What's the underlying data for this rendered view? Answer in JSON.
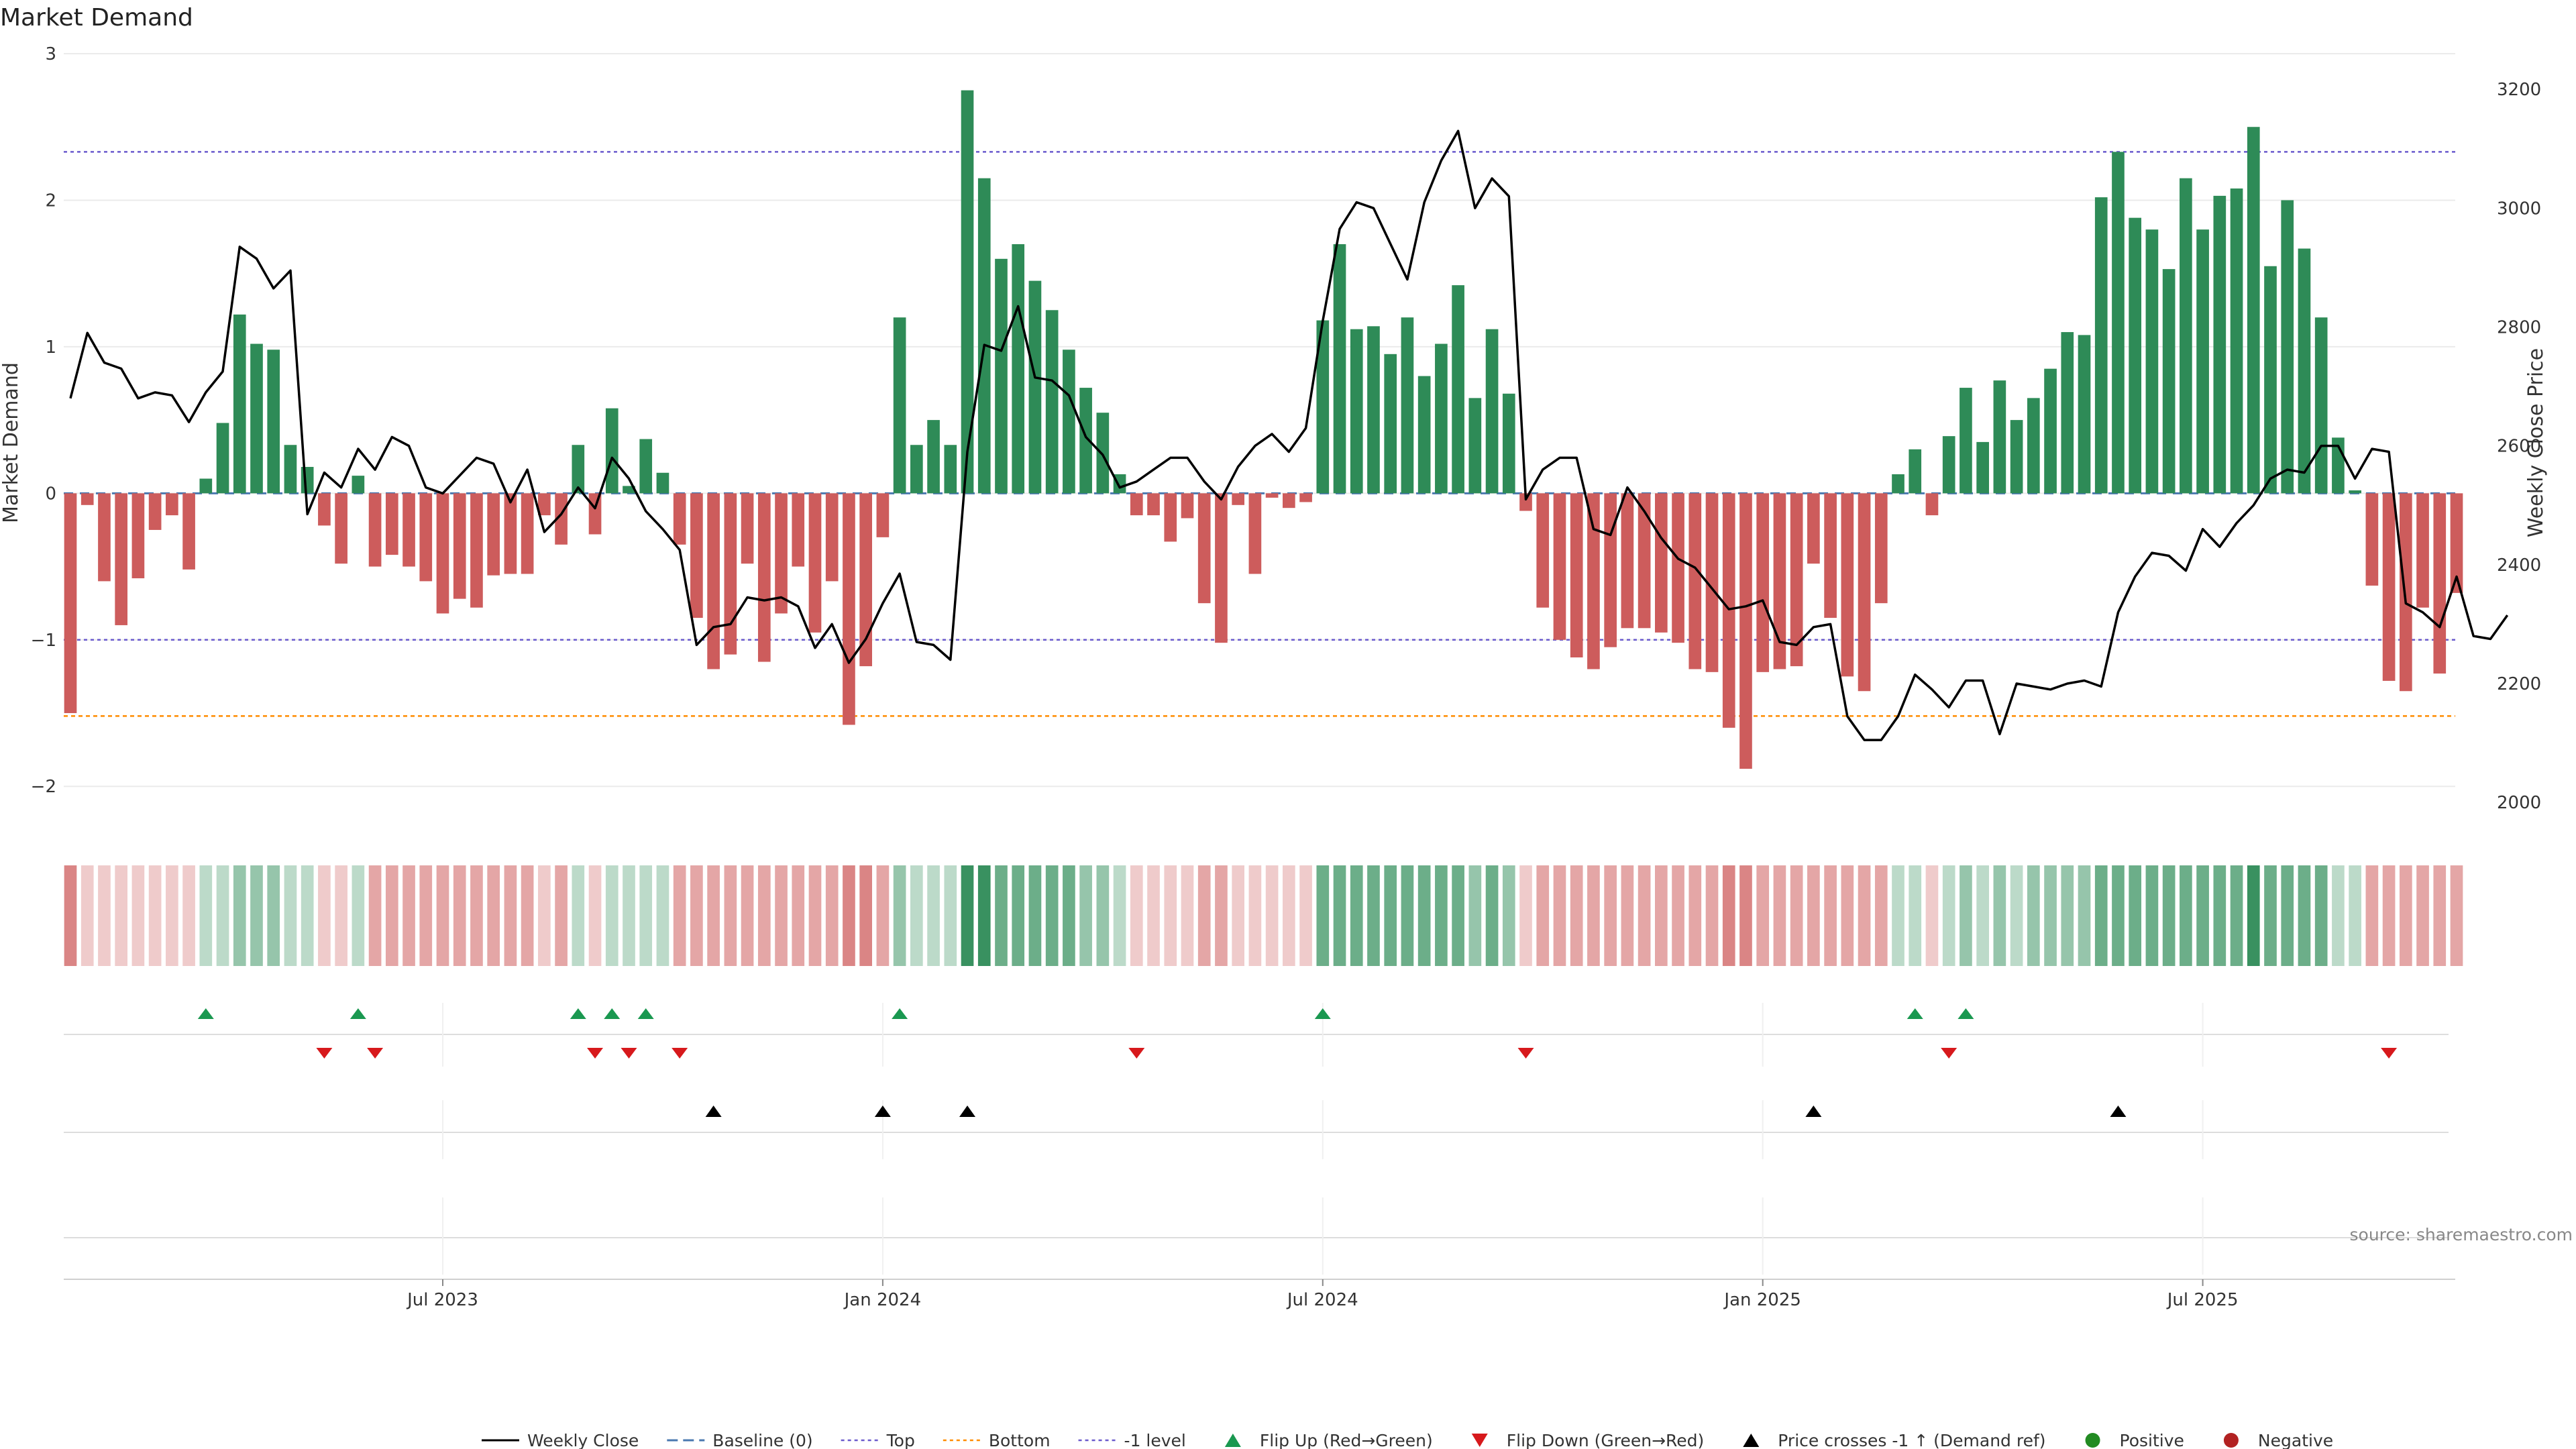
{
  "colors": {
    "positive": "#2e8b57",
    "negative": "#cd5c5c",
    "price": "#000000",
    "top_line": "#6a5acd",
    "bottom_line": "#ff8c00",
    "minus1_line": "#6a5acd",
    "flip_up": "#1a9850",
    "flip_down": "#d7191c",
    "cross": "#000000"
  },
  "chart_data": {
    "type": "bar",
    "title": "Market Demand",
    "ylabel": "Market Demand",
    "y2label": "Weekly Close Price",
    "ylim": [
      -2.15,
      3.0
    ],
    "y2lim": [
      1990,
      3260
    ],
    "y_ticks": [
      "3",
      "2",
      "1",
      "0",
      "−1",
      "−2"
    ],
    "y_tick_values": [
      3,
      2,
      1,
      0,
      -1,
      -2
    ],
    "y2_ticks": [
      "3200",
      "3000",
      "2800",
      "2600",
      "2400",
      "2200",
      "2000"
    ],
    "y2_tick_values": [
      3200,
      3000,
      2800,
      2600,
      2400,
      2200,
      2000
    ],
    "x_ticks": [
      "Jul 2023",
      "Jan 2024",
      "Jul 2024",
      "Jan 2025",
      "Jul 2025"
    ],
    "x_tick_weeks": [
      22,
      48,
      74,
      100,
      126
    ],
    "reference_lines": {
      "top": 2.33,
      "bottom": -1.52,
      "minus1": -1.0,
      "baseline": 0
    },
    "demand": [
      -1.5,
      -0.08,
      -0.6,
      -0.9,
      -0.58,
      -0.25,
      -0.15,
      -0.52,
      0.1,
      0.48,
      1.22,
      1.02,
      0.98,
      0.33,
      0.18,
      -0.22,
      -0.48,
      0.12,
      -0.5,
      -0.42,
      -0.5,
      -0.6,
      -0.82,
      -0.72,
      -0.78,
      -0.56,
      -0.55,
      -0.55,
      -0.15,
      -0.35,
      0.33,
      -0.28,
      0.58,
      0.05,
      0.37,
      0.14,
      -0.35,
      -0.85,
      -1.2,
      -1.1,
      -0.48,
      -1.15,
      -0.82,
      -0.5,
      -0.95,
      -0.6,
      -1.58,
      -1.18,
      -0.3,
      1.2,
      0.33,
      0.5,
      0.33,
      2.75,
      2.15,
      1.6,
      1.7,
      1.45,
      1.25,
      0.98,
      0.72,
      0.55,
      0.13,
      -0.15,
      -0.15,
      -0.33,
      -0.17,
      -0.75,
      -1.02,
      -0.08,
      -0.55,
      -0.03,
      -0.1,
      -0.06,
      1.18,
      1.7,
      1.12,
      1.14,
      0.95,
      1.2,
      0.8,
      1.02,
      1.42,
      0.65,
      1.12,
      0.68,
      -0.12,
      -0.78,
      -1.0,
      -1.12,
      -1.2,
      -1.05,
      -0.92,
      -0.92,
      -0.95,
      -1.02,
      -1.2,
      -1.22,
      -1.6,
      -1.88,
      -1.22,
      -1.2,
      -1.18,
      -0.48,
      -0.85,
      -1.25,
      -1.35,
      -0.75,
      0.13,
      0.3,
      -0.15,
      0.39,
      0.72,
      0.35,
      0.77,
      0.5,
      0.65,
      0.85,
      1.1,
      1.08,
      2.02,
      2.33,
      1.88,
      1.8,
      1.53,
      2.15,
      1.8,
      2.03,
      2.08,
      2.5,
      1.55,
      2.0,
      1.67,
      1.2,
      0.38,
      0.02,
      -0.63,
      -1.28,
      -1.35,
      -0.78,
      -1.23,
      -0.68
    ],
    "close": [
      2680,
      2790,
      2740,
      2730,
      2680,
      2690,
      2685,
      2640,
      2690,
      2725,
      2935,
      2915,
      2865,
      2895,
      2485,
      2555,
      2530,
      2595,
      2560,
      2615,
      2600,
      2530,
      2520,
      2550,
      2580,
      2570,
      2505,
      2560,
      2455,
      2485,
      2530,
      2495,
      2580,
      2545,
      2490,
      2460,
      2425,
      2265,
      2295,
      2300,
      2345,
      2340,
      2345,
      2330,
      2260,
      2300,
      2235,
      2275,
      2335,
      2385,
      2270,
      2265,
      2240,
      2590,
      2770,
      2760,
      2835,
      2715,
      2710,
      2685,
      2615,
      2585,
      2530,
      2540,
      2560,
      2580,
      2580,
      2540,
      2510,
      2565,
      2600,
      2620,
      2590,
      2630,
      2810,
      2965,
      3010,
      3000,
      2940,
      2880,
      3010,
      3080,
      3130,
      3000,
      3050,
      3020,
      2510,
      2560,
      2580,
      2580,
      2460,
      2450,
      2530,
      2490,
      2445,
      2410,
      2395,
      2360,
      2325,
      2330,
      2340,
      2270,
      2265,
      2295,
      2300,
      2145,
      2105,
      2105,
      2145,
      2215,
      2190,
      2160,
      2205,
      2205,
      2115,
      2200,
      2195,
      2190,
      2200,
      2205,
      2195,
      2320,
      2380,
      2420,
      2415,
      2390,
      2460,
      2430,
      2470,
      2500,
      2545,
      2560,
      2555,
      2600,
      2600,
      2545,
      2595,
      2590,
      2335,
      2320,
      2295,
      2380,
      2280,
      2275,
      2315
    ],
    "heat_strip": [
      -3,
      -1,
      -1,
      -1,
      -1,
      -1,
      -1,
      -1,
      1,
      1,
      2,
      2,
      2,
      1,
      1,
      -1,
      -1,
      1,
      -2,
      -2,
      -2,
      -2,
      -2,
      -2,
      -2,
      -2,
      -2,
      -2,
      -1,
      -2,
      1,
      -1,
      1,
      1,
      1,
      1,
      -2,
      -2,
      -2,
      -2,
      -2,
      -2,
      -2,
      -2,
      -2,
      -2,
      -3,
      -3,
      -2,
      2,
      1,
      1,
      1,
      4,
      4,
      3,
      3,
      3,
      3,
      3,
      2,
      2,
      1,
      -1,
      -1,
      -1,
      -1,
      -2,
      -2,
      -1,
      -1,
      -1,
      -1,
      -1,
      3,
      3,
      3,
      3,
      3,
      3,
      3,
      3,
      3,
      2,
      3,
      2,
      -1,
      -2,
      -2,
      -2,
      -2,
      -2,
      -2,
      -2,
      -2,
      -2,
      -2,
      -2,
      -3,
      -3,
      -2,
      -2,
      -2,
      -2,
      -2,
      -2,
      -2,
      -2,
      1,
      1,
      -1,
      1,
      2,
      1,
      2,
      1,
      2,
      2,
      2,
      2,
      3,
      3,
      3,
      3,
      3,
      3,
      3,
      3,
      3,
      4,
      3,
      3,
      3,
      3,
      1,
      1,
      -2,
      -2,
      -2,
      -2,
      -2,
      -2
    ],
    "flip_up_weeks": [
      8,
      17,
      30,
      32,
      34,
      49,
      74,
      109,
      112
    ],
    "flip_down_weeks": [
      15,
      18,
      31,
      33,
      36,
      63,
      86,
      111,
      137
    ],
    "cross_weeks": [
      38,
      48,
      53,
      103,
      121
    ]
  },
  "legend": [
    {
      "label": "Weekly Close",
      "kind": "line"
    },
    {
      "label": "Baseline (0)",
      "kind": "dash"
    },
    {
      "label": "Top",
      "kind": "dot-top"
    },
    {
      "label": "Bottom",
      "kind": "dot-bottom"
    },
    {
      "label": "-1 level",
      "kind": "dot-minus1"
    },
    {
      "label": "Flip Up (Red→Green)",
      "kind": "tri-up"
    },
    {
      "label": "Flip Down (Green→Red)",
      "kind": "tri-down"
    },
    {
      "label": "Price crosses -1 ↑ (Demand ref)",
      "kind": "tri-cross"
    },
    {
      "label": "Positive",
      "kind": "dot-pos"
    },
    {
      "label": "Negative",
      "kind": "dot-neg"
    }
  ],
  "source": "source: sharemaestro.com"
}
